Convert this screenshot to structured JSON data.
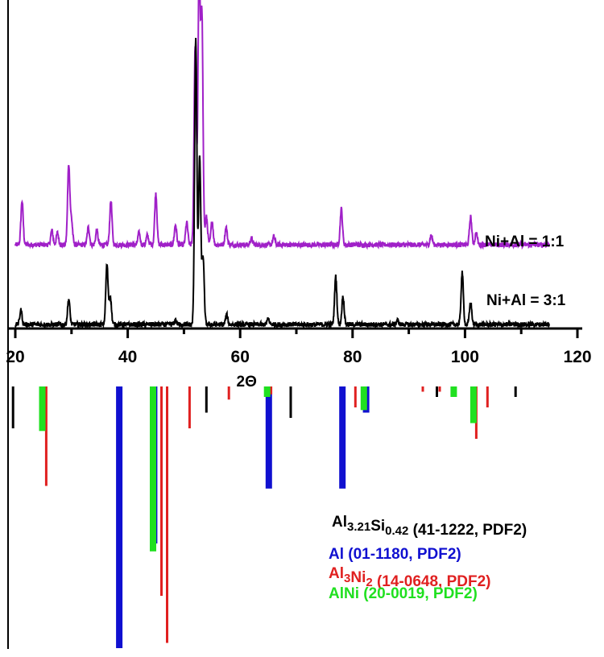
{
  "chart_data": {
    "type": "line",
    "xlabel": "2Θ",
    "ylabel": "",
    "xlim": [
      20,
      120
    ],
    "x_ticks": [
      20,
      40,
      60,
      80,
      100,
      120
    ],
    "grid": false,
    "series": [
      {
        "name": "Ni+Al = 1:1",
        "color": "#a020c8",
        "baseline": 1.0,
        "peaks": [
          [
            21.2,
            0.55
          ],
          [
            26.5,
            0.18
          ],
          [
            27.5,
            0.15
          ],
          [
            29.5,
            1.0
          ],
          [
            30.0,
            0.3
          ],
          [
            33.0,
            0.22
          ],
          [
            34.5,
            0.18
          ],
          [
            37.0,
            0.55
          ],
          [
            42.0,
            0.15
          ],
          [
            43.5,
            0.12
          ],
          [
            45.0,
            0.65
          ],
          [
            48.5,
            0.25
          ],
          [
            50.5,
            0.28
          ],
          [
            52.0,
            2.5
          ],
          [
            52.7,
            3.4
          ],
          [
            53.2,
            2.8
          ],
          [
            54.0,
            0.35
          ],
          [
            55.0,
            0.3
          ],
          [
            57.5,
            0.22
          ],
          [
            62.0,
            0.08
          ],
          [
            66.0,
            0.1
          ],
          [
            78.0,
            0.45
          ],
          [
            94.0,
            0.12
          ],
          [
            101.0,
            0.35
          ],
          [
            102.0,
            0.15
          ]
        ]
      },
      {
        "name": "Ni+Al = 3:1",
        "color": "#000000",
        "baseline": 0.0,
        "peaks": [
          [
            21.0,
            0.18
          ],
          [
            29.5,
            0.32
          ],
          [
            36.3,
            0.75
          ],
          [
            36.9,
            0.35
          ],
          [
            48.5,
            0.05
          ],
          [
            52.1,
            3.6
          ],
          [
            52.8,
            2.1
          ],
          [
            53.4,
            0.85
          ],
          [
            57.6,
            0.12
          ],
          [
            65.0,
            0.07
          ],
          [
            77.0,
            0.6
          ],
          [
            78.3,
            0.35
          ],
          [
            88.0,
            0.05
          ],
          [
            99.5,
            0.65
          ],
          [
            101.0,
            0.28
          ]
        ]
      }
    ],
    "reference_patterns": [
      {
        "label": "Al3.21Si0.42 (41-1222, PDF2)",
        "color": "#000000",
        "lines": [
          [
            19.6,
            0.16
          ],
          [
            54.0,
            0.1
          ],
          [
            69.0,
            0.12
          ],
          [
            95.0,
            0.04
          ],
          [
            109.0,
            0.04
          ]
        ]
      },
      {
        "label": "Al (01-1180, PDF2)",
        "color": "#1010d0",
        "lines": [
          [
            38.5,
            1.0
          ],
          [
            44.7,
            0.6
          ],
          [
            65.1,
            0.39
          ],
          [
            78.2,
            0.39
          ],
          [
            82.4,
            0.1
          ]
        ]
      },
      {
        "label": "Al3Ni2 (14-0648, PDF2)",
        "color": "#e02020",
        "lines": [
          [
            25.5,
            0.38
          ],
          [
            46.0,
            0.8
          ],
          [
            47.0,
            0.98
          ],
          [
            51.0,
            0.16
          ],
          [
            58.0,
            0.05
          ],
          [
            65.5,
            0.03
          ],
          [
            80.5,
            0.08
          ],
          [
            92.5,
            0.02
          ],
          [
            95.5,
            0.02
          ],
          [
            102.0,
            0.2
          ],
          [
            104.0,
            0.08
          ]
        ]
      },
      {
        "label": "AlNi (20-0019, PDF2)",
        "color": "#20e020",
        "lines": [
          [
            24.8,
            0.17
          ],
          [
            44.5,
            0.63
          ],
          [
            64.8,
            0.04
          ],
          [
            82.0,
            0.09
          ],
          [
            98.0,
            0.04
          ],
          [
            101.5,
            0.14
          ]
        ]
      }
    ],
    "legend": {
      "position": "bottom-right",
      "items": [
        {
          "parts": [
            [
              "Al",
              ""
            ],
            [
              "3.21",
              "sub"
            ],
            [
              "Si",
              ""
            ],
            [
              "0.42",
              "sub"
            ],
            [
              " (41-1222, PDF2)",
              ""
            ]
          ],
          "color": "#000000"
        },
        {
          "parts": [
            [
              "Al (01-1180, PDF2)",
              ""
            ]
          ],
          "color": "#1010d0"
        },
        {
          "parts": [
            [
              "Al",
              ""
            ],
            [
              "3",
              "sub"
            ],
            [
              "Ni",
              ""
            ],
            [
              "2",
              "sub"
            ],
            [
              " (14-0648, PDF2)",
              ""
            ]
          ],
          "color": "#e02020"
        },
        {
          "parts": [
            [
              "AlNi (20-0019, PDF2)",
              ""
            ]
          ],
          "color": "#20e020"
        }
      ]
    }
  }
}
